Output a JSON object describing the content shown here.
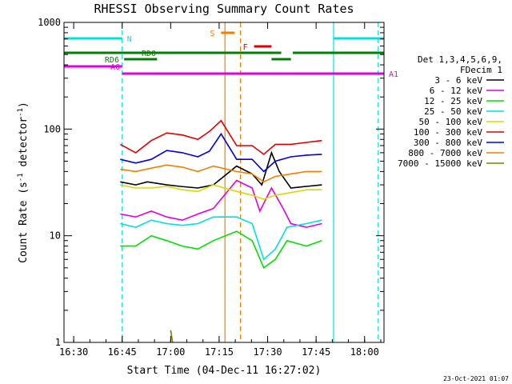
{
  "chart_data": {
    "type": "line",
    "title": "RHESSI Observing Summary Count Rates",
    "xlabel": "Start Time (04-Dec-11 16:27:02)",
    "ylabel_main": "Count Rate (s",
    "ylabel_sup1": "-1",
    "ylabel_mid": " detector",
    "ylabel_sup2": "-1",
    "ylabel_end": ")",
    "ylog": true,
    "ylim": [
      1,
      1000
    ],
    "xlim_minutes": [
      16.45,
      18.1
    ],
    "xticks": [
      {
        "t": 16.5,
        "label": "16:30"
      },
      {
        "t": 16.75,
        "label": "16:45"
      },
      {
        "t": 17.0,
        "label": "17:00"
      },
      {
        "t": 17.25,
        "label": "17:15"
      },
      {
        "t": 17.5,
        "label": "17:30"
      },
      {
        "t": 17.75,
        "label": "17:45"
      },
      {
        "t": 18.0,
        "label": "18:00"
      }
    ],
    "yticks": [
      {
        "v": 1,
        "label": "1"
      },
      {
        "v": 10,
        "label": "10"
      },
      {
        "v": 100,
        "label": "100"
      },
      {
        "v": 1000,
        "label": "1000"
      }
    ],
    "legend_header": [
      "Det 1,3,4,5,6,9,",
      "FDecim 1"
    ],
    "series": [
      {
        "name": "3 - 6 keV",
        "color": "#000000",
        "points": [
          [
            16.74,
            32
          ],
          [
            16.82,
            30
          ],
          [
            16.88,
            32
          ],
          [
            16.98,
            30
          ],
          [
            17.05,
            29
          ],
          [
            17.14,
            28
          ],
          [
            17.22,
            30
          ],
          [
            17.34,
            45
          ],
          [
            17.42,
            38
          ],
          [
            17.47,
            30
          ],
          [
            17.52,
            60
          ],
          [
            17.56,
            40
          ],
          [
            17.62,
            28
          ],
          [
            17.7,
            29
          ],
          [
            17.78,
            30
          ]
        ]
      },
      {
        "name": "6 - 12 keV",
        "color": "#e000e0",
        "points": [
          [
            16.74,
            16
          ],
          [
            16.82,
            15
          ],
          [
            16.9,
            17
          ],
          [
            16.98,
            15
          ],
          [
            17.06,
            14
          ],
          [
            17.14,
            16
          ],
          [
            17.22,
            18
          ],
          [
            17.34,
            33
          ],
          [
            17.42,
            28
          ],
          [
            17.46,
            17
          ],
          [
            17.52,
            28
          ],
          [
            17.58,
            18
          ],
          [
            17.62,
            13
          ],
          [
            17.7,
            12
          ],
          [
            17.78,
            13
          ]
        ]
      },
      {
        "name": "12 - 25 keV",
        "color": "#00e000",
        "points": [
          [
            16.74,
            8
          ],
          [
            16.82,
            8
          ],
          [
            16.9,
            10
          ],
          [
            16.98,
            9
          ],
          [
            17.06,
            8
          ],
          [
            17.14,
            7.5
          ],
          [
            17.22,
            9
          ],
          [
            17.34,
            11
          ],
          [
            17.42,
            9
          ],
          [
            17.48,
            5
          ],
          [
            17.54,
            6
          ],
          [
            17.6,
            9
          ],
          [
            17.7,
            8
          ],
          [
            17.78,
            9
          ]
        ]
      },
      {
        "name": "25 - 50 keV",
        "color": "#00e0e0",
        "points": [
          [
            16.74,
            13
          ],
          [
            16.82,
            12
          ],
          [
            16.9,
            14
          ],
          [
            16.98,
            13
          ],
          [
            17.06,
            12.5
          ],
          [
            17.14,
            13
          ],
          [
            17.22,
            15
          ],
          [
            17.34,
            15
          ],
          [
            17.42,
            13
          ],
          [
            17.48,
            6
          ],
          [
            17.54,
            7.5
          ],
          [
            17.6,
            12
          ],
          [
            17.7,
            13
          ],
          [
            17.78,
            14
          ]
        ]
      },
      {
        "name": "50 - 100 keV",
        "color": "#d8d800",
        "points": [
          [
            16.74,
            30
          ],
          [
            16.82,
            28
          ],
          [
            16.9,
            28
          ],
          [
            16.98,
            29
          ],
          [
            17.06,
            27
          ],
          [
            17.14,
            26
          ],
          [
            17.22,
            30
          ],
          [
            17.34,
            26
          ],
          [
            17.42,
            24
          ],
          [
            17.48,
            22
          ],
          [
            17.54,
            24
          ],
          [
            17.6,
            25
          ],
          [
            17.7,
            27
          ],
          [
            17.78,
            27
          ]
        ]
      },
      {
        "name": "100 - 300 keV",
        "color": "#e00000",
        "points": [
          [
            16.74,
            72
          ],
          [
            16.82,
            60
          ],
          [
            16.9,
            78
          ],
          [
            16.98,
            92
          ],
          [
            17.06,
            88
          ],
          [
            17.14,
            80
          ],
          [
            17.2,
            95
          ],
          [
            17.26,
            120
          ],
          [
            17.34,
            70
          ],
          [
            17.42,
            70
          ],
          [
            17.48,
            58
          ],
          [
            17.54,
            72
          ],
          [
            17.62,
            72
          ],
          [
            17.7,
            75
          ],
          [
            17.78,
            78
          ]
        ]
      },
      {
        "name": "300 - 800 keV",
        "color": "#0000e0",
        "points": [
          [
            16.74,
            52
          ],
          [
            16.82,
            48
          ],
          [
            16.9,
            52
          ],
          [
            16.98,
            63
          ],
          [
            17.06,
            60
          ],
          [
            17.14,
            55
          ],
          [
            17.2,
            62
          ],
          [
            17.26,
            90
          ],
          [
            17.34,
            52
          ],
          [
            17.42,
            52
          ],
          [
            17.48,
            40
          ],
          [
            17.54,
            50
          ],
          [
            17.62,
            55
          ],
          [
            17.7,
            57
          ],
          [
            17.78,
            58
          ]
        ]
      },
      {
        "name": "800 - 7000 keV",
        "color": "#f08000",
        "points": [
          [
            16.74,
            42
          ],
          [
            16.82,
            40
          ],
          [
            16.9,
            43
          ],
          [
            16.98,
            46
          ],
          [
            17.06,
            44
          ],
          [
            17.14,
            40
          ],
          [
            17.22,
            45
          ],
          [
            17.34,
            40
          ],
          [
            17.42,
            38
          ],
          [
            17.48,
            32
          ],
          [
            17.54,
            36
          ],
          [
            17.62,
            38
          ],
          [
            17.7,
            40
          ],
          [
            17.78,
            40
          ]
        ]
      },
      {
        "name": "7000 - 15000 keV",
        "color": "#808000",
        "points": [
          [
            17.0,
            1.3
          ],
          [
            17.01,
            1.0
          ]
        ]
      }
    ],
    "flags": [
      {
        "label": "N",
        "color": "#00e0e0",
        "segments": [
          [
            16.45,
            16.75
          ],
          [
            17.84,
            18.1
          ]
        ]
      },
      {
        "label": "S",
        "color": "#f08000",
        "segments": [
          [
            17.26,
            17.33
          ]
        ]
      },
      {
        "label": "F",
        "color": "#e00000",
        "segments": [
          [
            17.43,
            17.52
          ]
        ]
      },
      {
        "label": "RD0",
        "color": "#008000",
        "segments": [
          [
            16.45,
            17.57
          ],
          [
            17.63,
            18.1
          ]
        ]
      },
      {
        "label": "RD6",
        "color": "#008000",
        "segments": [
          [
            16.76,
            16.93
          ],
          [
            17.52,
            17.62
          ]
        ]
      },
      {
        "label": "A0",
        "color": "#e000e0",
        "segments": [
          [
            16.45,
            16.75
          ]
        ]
      },
      {
        "label": "A1",
        "color": "#e000e0",
        "segments": [
          [
            16.75,
            18.1
          ]
        ]
      }
    ],
    "vlines": [
      {
        "t": 16.75,
        "color": "#00e0e0",
        "style": "dashed"
      },
      {
        "t": 17.28,
        "color": "#f08000",
        "style": "solid"
      },
      {
        "t": 17.36,
        "color": "#f08000",
        "style": "dashed"
      },
      {
        "t": 17.84,
        "color": "#00e0e0",
        "style": "solid"
      },
      {
        "t": 18.07,
        "color": "#00e0e0",
        "style": "dashed"
      }
    ]
  },
  "footer": {
    "timestamp": "23-Oct-2021 01:07"
  }
}
